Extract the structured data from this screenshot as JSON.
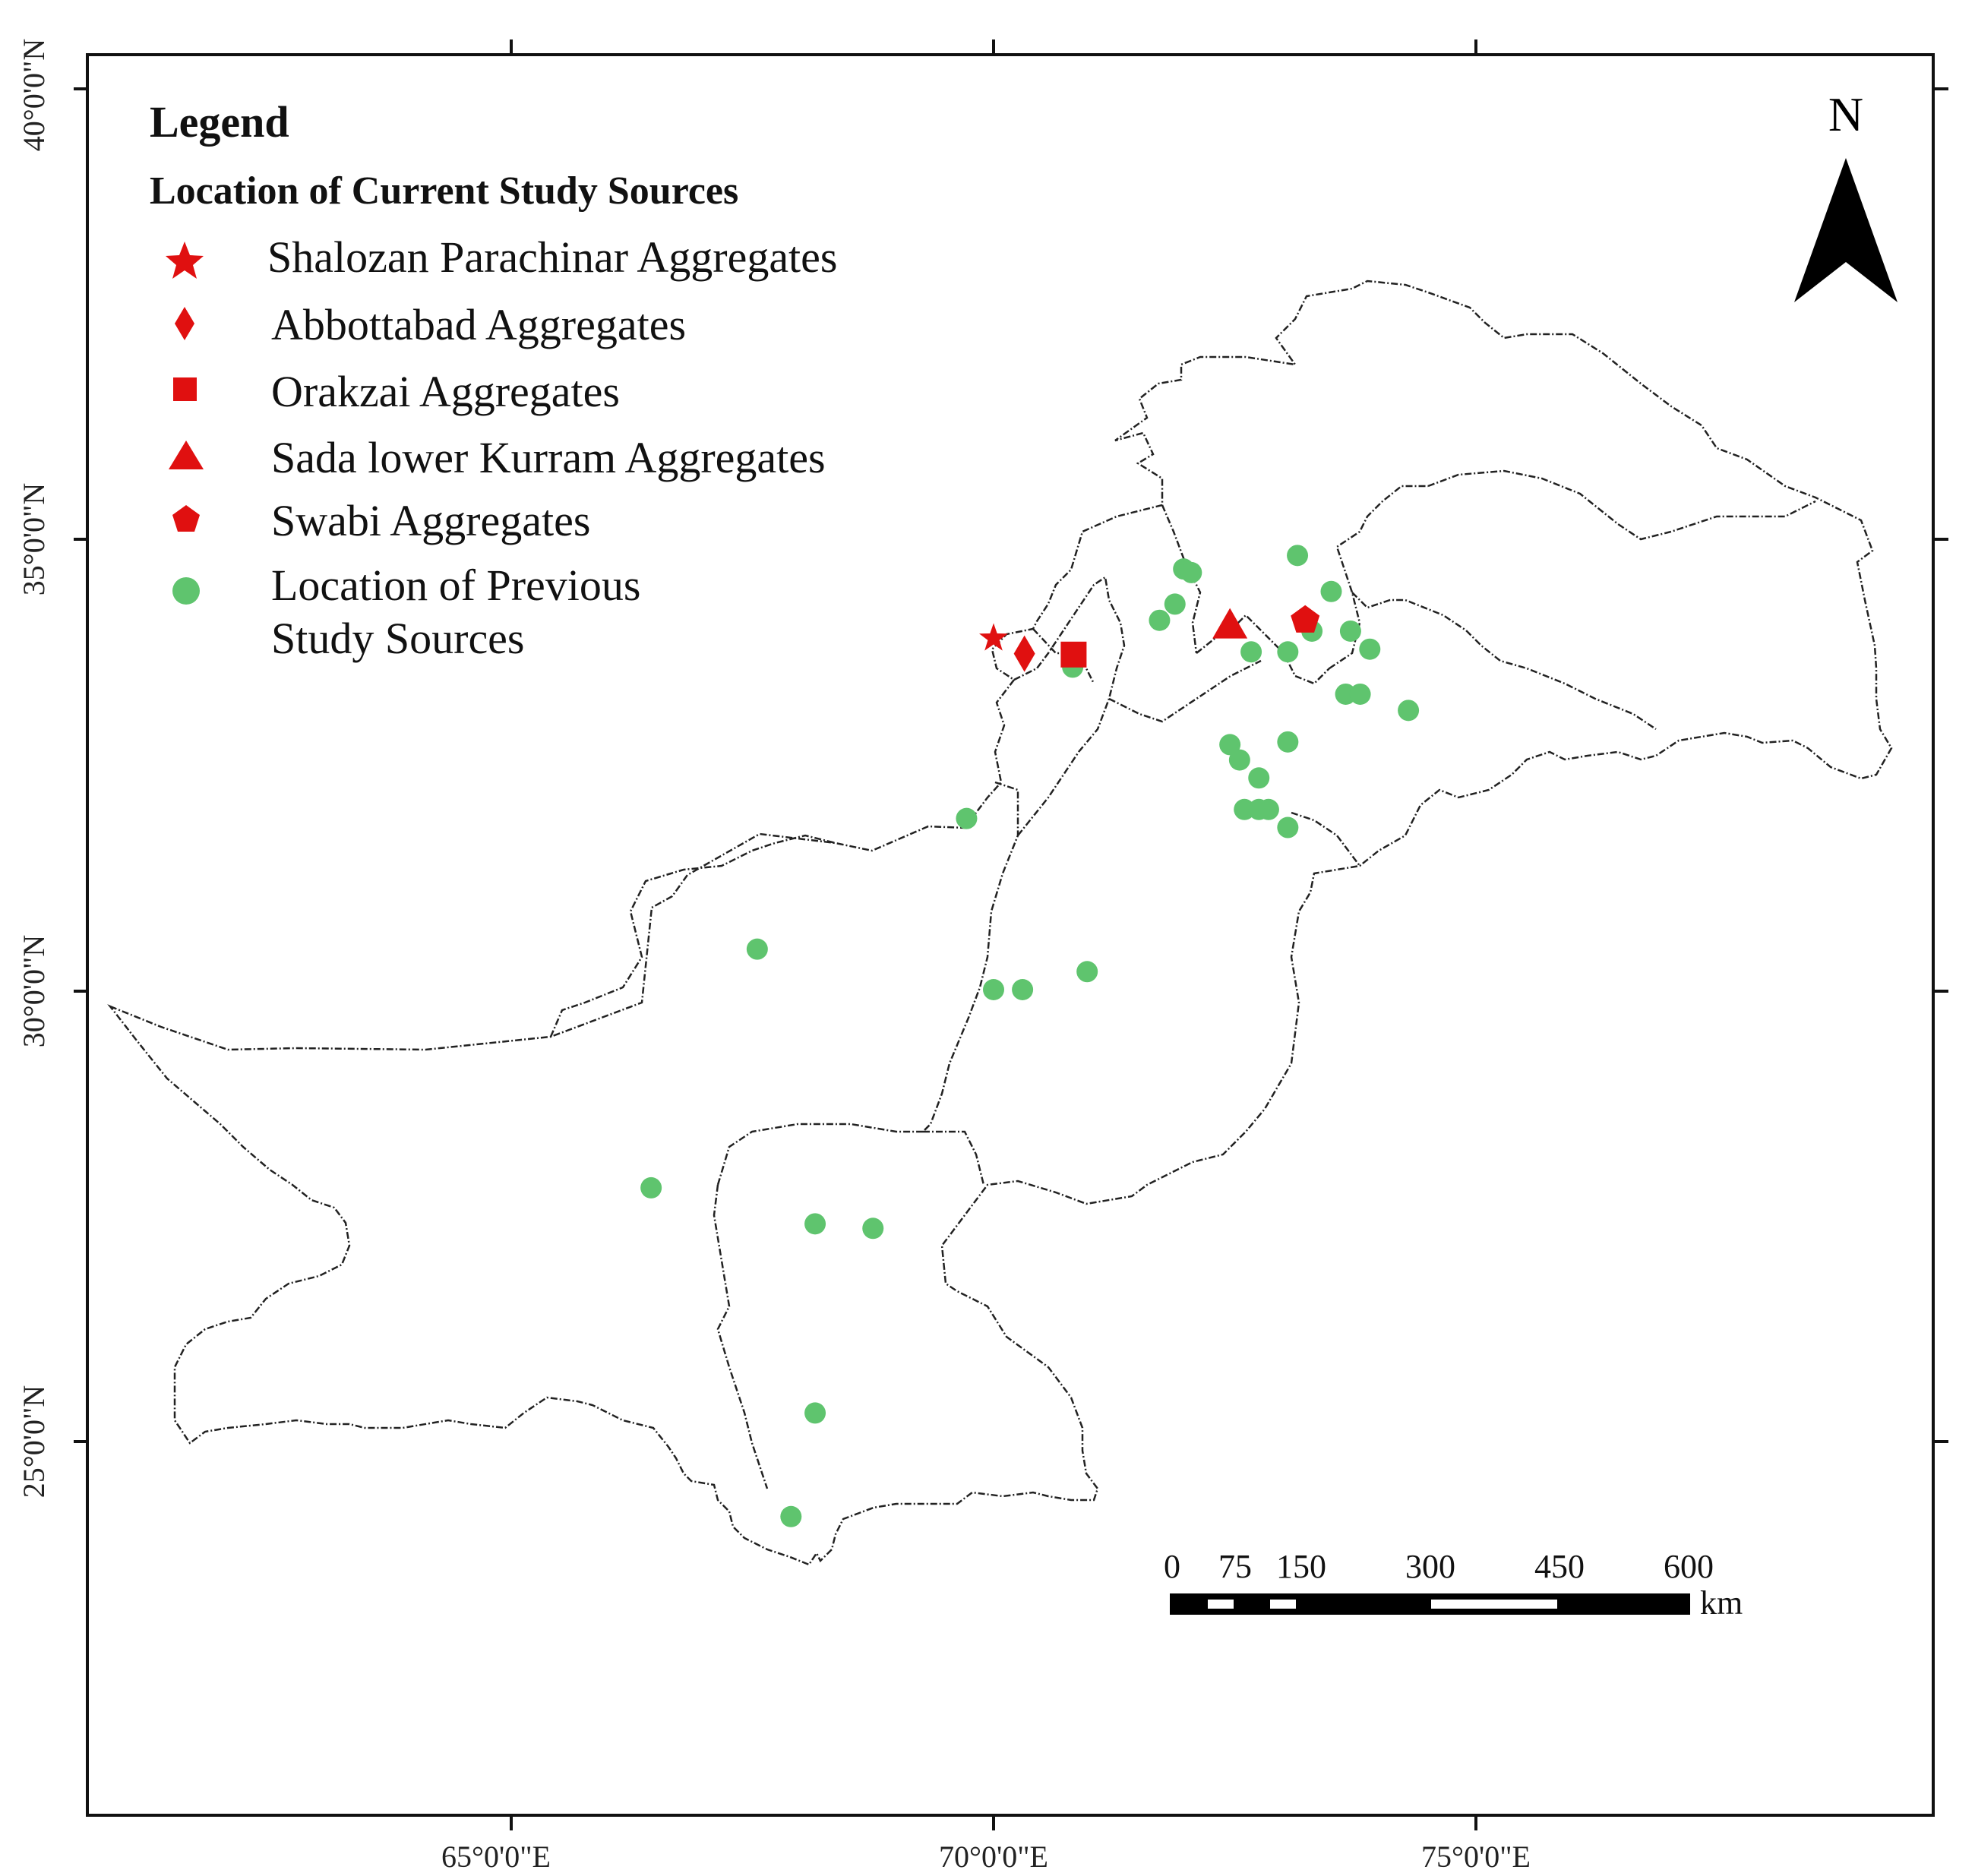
{
  "map": {
    "lon_ticks": [
      "65°0'0\"E",
      "70°0'0\"E",
      "75°0'0\"E"
    ],
    "lat_ticks": [
      "40°0'0\"N",
      "35°0'0\"N",
      "30°0'0\"N",
      "25°0'0\"N"
    ]
  },
  "legend": {
    "title": "Legend",
    "subtitle": "Location of Current Study Sources",
    "items": [
      {
        "symbol": "star",
        "color": "#e01010",
        "label": "Shalozan Parachinar Aggregates"
      },
      {
        "symbol": "diamond",
        "color": "#e01010",
        "label": "Abbottabad Aggregates"
      },
      {
        "symbol": "square",
        "color": "#e01010",
        "label": "Orakzai Aggregates"
      },
      {
        "symbol": "triangle",
        "color": "#e01010",
        "label": "Sada lower Kurram Aggregates"
      },
      {
        "symbol": "pentagon",
        "color": "#e01010",
        "label": "Swabi Aggregates"
      },
      {
        "symbol": "circle",
        "color": "#5fc46e",
        "label_line1": "Location of Previous",
        "label_line2": "Study Sources"
      }
    ]
  },
  "north_arrow": {
    "label": "N"
  },
  "scale_bar": {
    "labels": [
      "0",
      "75",
      "150",
      "300",
      "450",
      "600"
    ],
    "unit": "km"
  },
  "current_sources": [
    {
      "name": "Shalozan Parachinar Aggregates",
      "symbol": "star",
      "lon": 70.0,
      "lat": 33.9
    },
    {
      "name": "Abbottabad Aggregates",
      "symbol": "diamond",
      "lon": 70.32,
      "lat": 33.73
    },
    {
      "name": "Orakzai Aggregates",
      "symbol": "square",
      "lon": 70.83,
      "lat": 33.72
    },
    {
      "name": "Sada lower Kurram Aggregates",
      "symbol": "triangle",
      "lon": 72.45,
      "lat": 34.05
    },
    {
      "name": "Swabi Aggregates",
      "symbol": "pentagon",
      "lon": 73.23,
      "lat": 34.1
    }
  ],
  "previous_sources": [
    [
      71.97,
      34.67
    ],
    [
      72.05,
      34.63
    ],
    [
      73.15,
      34.82
    ],
    [
      71.88,
      34.28
    ],
    [
      71.72,
      34.1
    ],
    [
      73.5,
      34.42
    ],
    [
      73.3,
      33.98
    ],
    [
      73.7,
      33.98
    ],
    [
      72.67,
      33.75
    ],
    [
      73.05,
      33.75
    ],
    [
      73.9,
      33.78
    ],
    [
      70.82,
      33.58
    ],
    [
      73.65,
      33.28
    ],
    [
      73.8,
      33.28
    ],
    [
      74.3,
      33.1
    ],
    [
      72.45,
      32.72
    ],
    [
      72.55,
      32.55
    ],
    [
      72.75,
      32.35
    ],
    [
      73.05,
      32.75
    ],
    [
      72.6,
      32.0
    ],
    [
      72.75,
      32.0
    ],
    [
      72.85,
      32.0
    ],
    [
      73.05,
      31.8
    ],
    [
      69.72,
      31.9
    ],
    [
      67.55,
      30.45
    ],
    [
      70.0,
      30.0
    ],
    [
      70.3,
      30.0
    ],
    [
      70.97,
      30.2
    ],
    [
      66.45,
      27.8
    ],
    [
      68.15,
      27.4
    ],
    [
      68.75,
      27.35
    ],
    [
      68.15,
      25.3
    ],
    [
      67.9,
      24.15
    ]
  ]
}
